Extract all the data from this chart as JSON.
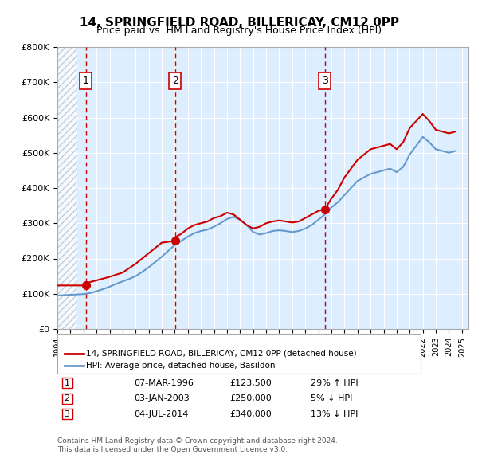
{
  "title": "14, SPRINGFIELD ROAD, BILLERICAY, CM12 0PP",
  "subtitle": "Price paid vs. HM Land Registry's House Price Index (HPI)",
  "legend_property": "14, SPRINGFIELD ROAD, BILLERICAY, CM12 0PP (detached house)",
  "legend_hpi": "HPI: Average price, detached house, Basildon",
  "footer1": "Contains HM Land Registry data © Crown copyright and database right 2024.",
  "footer2": "This data is licensed under the Open Government Licence v3.0.",
  "sales": [
    {
      "num": 1,
      "date": "07-MAR-1996",
      "date_x": 1996.18,
      "price": 123500,
      "pct": "29%",
      "dir": "↑"
    },
    {
      "num": 2,
      "date": "03-JAN-2003",
      "date_x": 2003.01,
      "price": 250000,
      "pct": "5%",
      "dir": "↓"
    },
    {
      "num": 3,
      "date": "04-JUL-2014",
      "date_x": 2014.5,
      "price": 340000,
      "pct": "13%",
      "dir": "↓"
    }
  ],
  "property_line_color": "#cc0000",
  "hpi_line_color": "#6699cc",
  "dashed_line_color": "#cc0000",
  "plot_bg_color": "#ddeeff",
  "hatch_color": "#bbccdd",
  "marker_color": "#cc0000",
  "box_color": "#cc0000",
  "ylim": [
    0,
    800000
  ],
  "xlim_start": 1994,
  "xlim_end": 2025.5,
  "hatch_end": 1995.5,
  "property_line": {
    "x": [
      1994.0,
      1995.5,
      1996.18,
      1996.18,
      1997.0,
      1998.0,
      1999.0,
      2000.0,
      2001.0,
      2002.0,
      2003.01,
      2003.01,
      2003.5,
      2004.0,
      2004.5,
      2005.0,
      2005.5,
      2006.0,
      2006.5,
      2007.0,
      2007.5,
      2008.0,
      2008.5,
      2009.0,
      2009.5,
      2010.0,
      2010.5,
      2011.0,
      2011.5,
      2012.0,
      2012.5,
      2013.0,
      2013.5,
      2014.0,
      2014.5,
      2014.5,
      2015.0,
      2015.5,
      2016.0,
      2016.5,
      2017.0,
      2017.5,
      2018.0,
      2018.5,
      2019.0,
      2019.5,
      2020.0,
      2020.5,
      2021.0,
      2021.5,
      2022.0,
      2022.5,
      2023.0,
      2023.5,
      2024.0,
      2024.5
    ],
    "y": [
      123500,
      123500,
      123500,
      130000,
      138000,
      148000,
      160000,
      185000,
      215000,
      245000,
      250000,
      260000,
      270000,
      285000,
      295000,
      300000,
      305000,
      315000,
      320000,
      330000,
      325000,
      310000,
      295000,
      285000,
      290000,
      300000,
      305000,
      308000,
      305000,
      302000,
      305000,
      315000,
      325000,
      335000,
      340000,
      340000,
      370000,
      395000,
      430000,
      455000,
      480000,
      495000,
      510000,
      515000,
      520000,
      525000,
      510000,
      530000,
      570000,
      590000,
      610000,
      590000,
      565000,
      560000,
      555000,
      560000
    ]
  },
  "hpi_line": {
    "x": [
      1994.0,
      1994.5,
      1995.0,
      1995.5,
      1996.0,
      1996.5,
      1997.0,
      1997.5,
      1998.0,
      1998.5,
      1999.0,
      1999.5,
      2000.0,
      2000.5,
      2001.0,
      2001.5,
      2002.0,
      2002.5,
      2003.0,
      2003.5,
      2004.0,
      2004.5,
      2005.0,
      2005.5,
      2006.0,
      2006.5,
      2007.0,
      2007.5,
      2008.0,
      2008.5,
      2009.0,
      2009.5,
      2010.0,
      2010.5,
      2011.0,
      2011.5,
      2012.0,
      2012.5,
      2013.0,
      2013.5,
      2014.0,
      2014.5,
      2015.0,
      2015.5,
      2016.0,
      2016.5,
      2017.0,
      2017.5,
      2018.0,
      2018.5,
      2019.0,
      2019.5,
      2020.0,
      2020.5,
      2021.0,
      2021.5,
      2022.0,
      2022.5,
      2023.0,
      2023.5,
      2024.0,
      2024.5
    ],
    "y": [
      95000,
      96000,
      97000,
      98000,
      99000,
      102000,
      107000,
      113000,
      120000,
      128000,
      135000,
      142000,
      150000,
      162000,
      175000,
      190000,
      205000,
      222000,
      238000,
      250000,
      262000,
      272000,
      278000,
      282000,
      290000,
      300000,
      312000,
      318000,
      310000,
      295000,
      275000,
      268000,
      272000,
      278000,
      280000,
      278000,
      275000,
      278000,
      285000,
      295000,
      310000,
      325000,
      345000,
      360000,
      380000,
      400000,
      420000,
      430000,
      440000,
      445000,
      450000,
      455000,
      445000,
      460000,
      495000,
      520000,
      545000,
      530000,
      510000,
      505000,
      500000,
      505000
    ]
  }
}
